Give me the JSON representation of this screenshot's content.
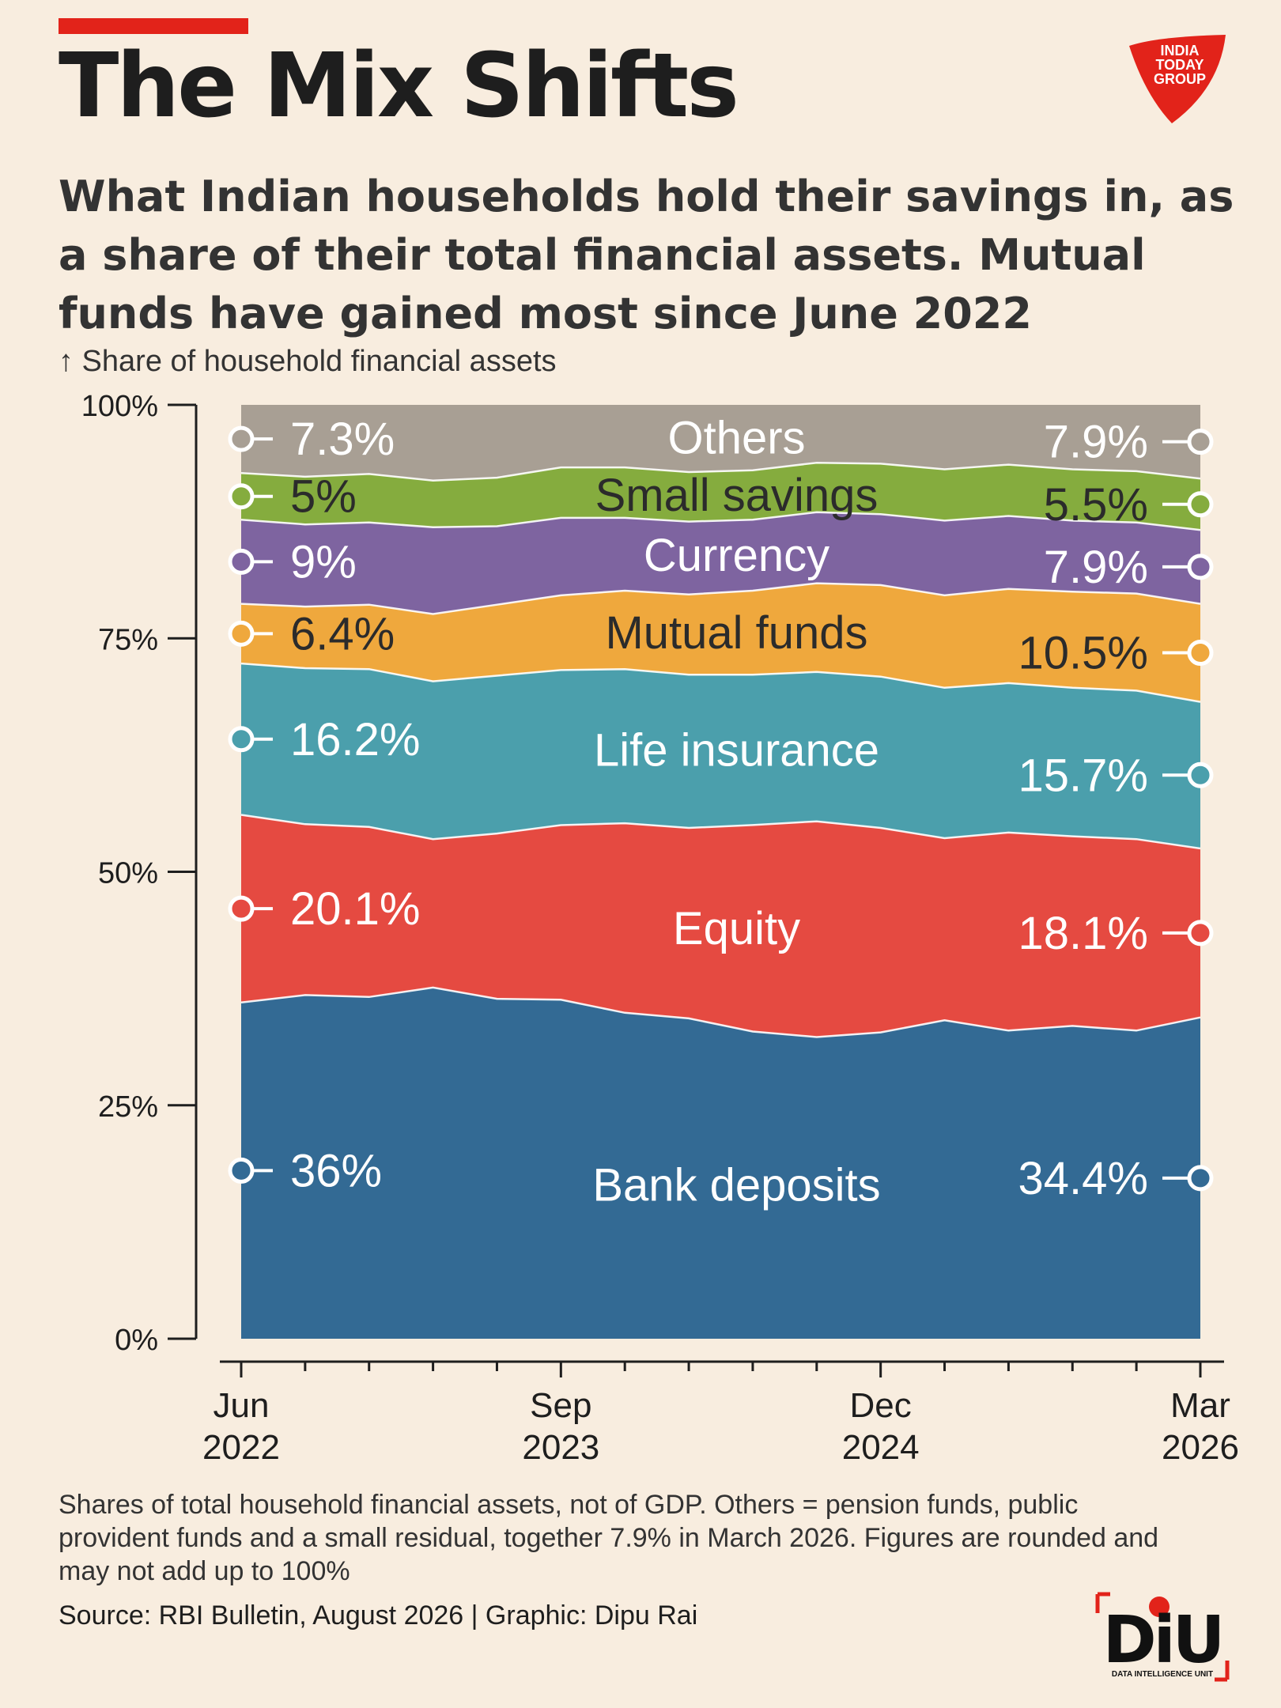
{
  "header": {
    "accent_color": "#e2231a",
    "title": "The Mix Shifts",
    "subtitle": "What Indian households hold their savings in, as a share of their total financial assets. Mutual funds have gained most since June 2022",
    "ylabel": "↑ Share of household financial assets"
  },
  "logo": {
    "text_lines": [
      "INDIA",
      "TODAY",
      "GROUP"
    ],
    "color": "#e2231a"
  },
  "chart_data": {
    "type": "area",
    "stacked": true,
    "x": [
      "Jun 2022",
      "Sep 2022",
      "Dec 2022",
      "Mar 2023",
      "Jun 2023",
      "Sep 2023",
      "Dec 2023",
      "Mar 2024",
      "Jun 2024",
      "Sep 2024",
      "Dec 2024",
      "Mar 2025",
      "Jun 2025",
      "Sep 2025",
      "Dec 2025",
      "Mar 2026"
    ],
    "x_ticks": [
      {
        "month": "Jun",
        "year": "2022",
        "index": 0
      },
      {
        "month": "Sep",
        "year": "2023",
        "index": 5
      },
      {
        "month": "Dec",
        "year": "2024",
        "index": 10
      },
      {
        "month": "Mar",
        "year": "2026",
        "index": 15
      }
    ],
    "y_ticks": [
      "0%",
      "25%",
      "50%",
      "75%",
      "100%"
    ],
    "ylim": [
      0,
      100
    ],
    "series": [
      {
        "name": "Bank deposits",
        "color": "#336a94",
        "label_color": "#ffffff",
        "start_label": "36%",
        "end_label": "34.4%",
        "values": [
          36.0,
          36.8,
          36.6,
          37.6,
          36.4,
          36.3,
          34.9,
          34.3,
          32.9,
          32.3,
          32.8,
          34.1,
          33.0,
          33.5,
          33.0,
          34.4
        ]
      },
      {
        "name": "Equity",
        "color": "#e54a41",
        "label_color": "#ffffff",
        "start_label": "20.1%",
        "end_label": "18.1%",
        "values": [
          20.1,
          18.3,
          18.2,
          15.9,
          17.7,
          18.7,
          20.3,
          20.4,
          22.1,
          23.1,
          21.9,
          19.5,
          21.2,
          20.3,
          20.5,
          18.1
        ]
      },
      {
        "name": "Life insurance",
        "color": "#4b9fac",
        "label_color": "#ffffff",
        "start_label": "16.2%",
        "end_label": "15.7%",
        "values": [
          16.2,
          16.7,
          16.9,
          16.9,
          16.9,
          16.6,
          16.5,
          16.4,
          16.1,
          16.0,
          16.2,
          16.1,
          16.0,
          15.9,
          15.9,
          15.7
        ]
      },
      {
        "name": "Mutual funds",
        "color": "#efa83d",
        "label_color": "#2b2b2b",
        "start_label": "6.4%",
        "end_label": "10.5%",
        "values": [
          6.4,
          6.6,
          6.9,
          7.2,
          7.6,
          8.0,
          8.4,
          8.6,
          9.0,
          9.5,
          9.8,
          9.9,
          10.1,
          10.3,
          10.4,
          10.5
        ]
      },
      {
        "name": "Currency",
        "color": "#7e64a0",
        "label_color": "#ffffff",
        "start_label": "9%",
        "end_label": "7.9%",
        "values": [
          9.0,
          8.8,
          8.8,
          9.3,
          8.4,
          8.3,
          7.8,
          7.8,
          7.6,
          7.6,
          7.6,
          8.0,
          7.8,
          7.6,
          7.6,
          7.9
        ]
      },
      {
        "name": "Small savings",
        "color": "#85ac3e",
        "label_color": "#2b2b2b",
        "start_label": "5%",
        "end_label": "5.5%",
        "values": [
          5.0,
          5.1,
          5.2,
          5.0,
          5.2,
          5.4,
          5.4,
          5.3,
          5.3,
          5.3,
          5.4,
          5.5,
          5.5,
          5.5,
          5.5,
          5.5
        ]
      },
      {
        "name": "Others",
        "color": "#a89f94",
        "label_color": "#ffffff",
        "start_label": "7.3%",
        "end_label": "7.9%",
        "values": [
          7.3,
          7.7,
          7.4,
          8.1,
          7.8,
          6.7,
          6.7,
          7.2,
          7.0,
          6.2,
          6.3,
          6.9,
          6.4,
          6.9,
          7.1,
          7.9
        ]
      }
    ]
  },
  "footnote": "Shares of total household financial assets, not of GDP. Others = pension funds, public provident funds and a small residual, together 7.9% in March 2026. Figures are rounded and may not add up to 100%",
  "source": "Source: RBI Bulletin, August 2026 | Graphic: Dipu Rai",
  "diu_logo": {
    "main": "DiU",
    "caption": "DATA INTELLIGENCE UNIT"
  }
}
